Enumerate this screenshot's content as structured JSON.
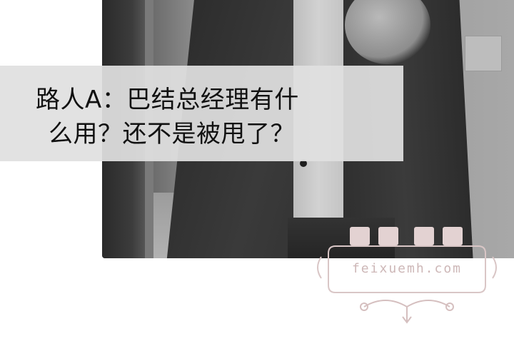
{
  "caption": {
    "line1": "路人A：巴结总经理有什",
    "line2": "么用？还不是被甩了？"
  },
  "watermark": {
    "site": "feixuemh.com"
  },
  "colors": {
    "caption_bg": "#e0e0e0",
    "caption_text": "#111111",
    "watermark": "#cdb7b7"
  },
  "icons": [
    "watermark-logo-icon",
    "ornament-icon"
  ]
}
